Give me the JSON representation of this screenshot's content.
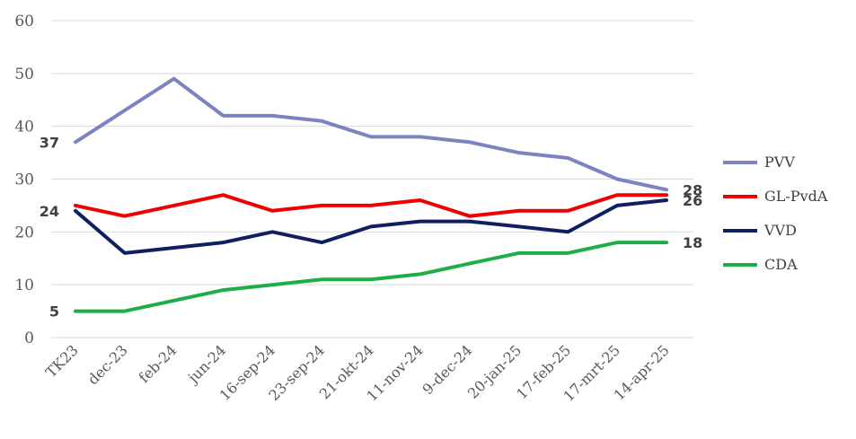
{
  "chart_data": {
    "type": "line",
    "categories": [
      "TK23",
      "dec-23",
      "feb-24",
      "jun-24",
      "16-sep-24",
      "23-sep-24",
      "21-okt-24",
      "11-nov-24",
      "9-dec-24",
      "20-jan-25",
      "17-feb-25",
      "17-mrt-25",
      "14-apr-25"
    ],
    "ylim": [
      0,
      60
    ],
    "yticks": [
      0,
      10,
      20,
      30,
      40,
      50,
      60
    ],
    "grid": true,
    "legend_position": "right",
    "series": [
      {
        "name": "PVV",
        "color": "#7c83c0",
        "values": [
          37,
          43,
          49,
          42,
          42,
          41,
          38,
          38,
          37,
          35,
          34,
          30,
          28
        ],
        "start_label": "37",
        "end_label": "28"
      },
      {
        "name": "GL-PvdA",
        "color": "#ee0000",
        "values": [
          25,
          23,
          25,
          27,
          24,
          25,
          25,
          26,
          23,
          24,
          24,
          27,
          27
        ],
        "start_label": "",
        "end_label": ""
      },
      {
        "name": "VVD",
        "color": "#0f2060",
        "values": [
          24,
          16,
          17,
          18,
          20,
          18,
          21,
          22,
          22,
          21,
          20,
          25,
          26
        ],
        "start_label": "24",
        "end_label": "26"
      },
      {
        "name": "CDA",
        "color": "#1fad4a",
        "values": [
          5,
          5,
          7,
          9,
          10,
          11,
          11,
          12,
          14,
          16,
          16,
          18,
          18
        ],
        "start_label": "5",
        "end_label": "18"
      }
    ]
  }
}
